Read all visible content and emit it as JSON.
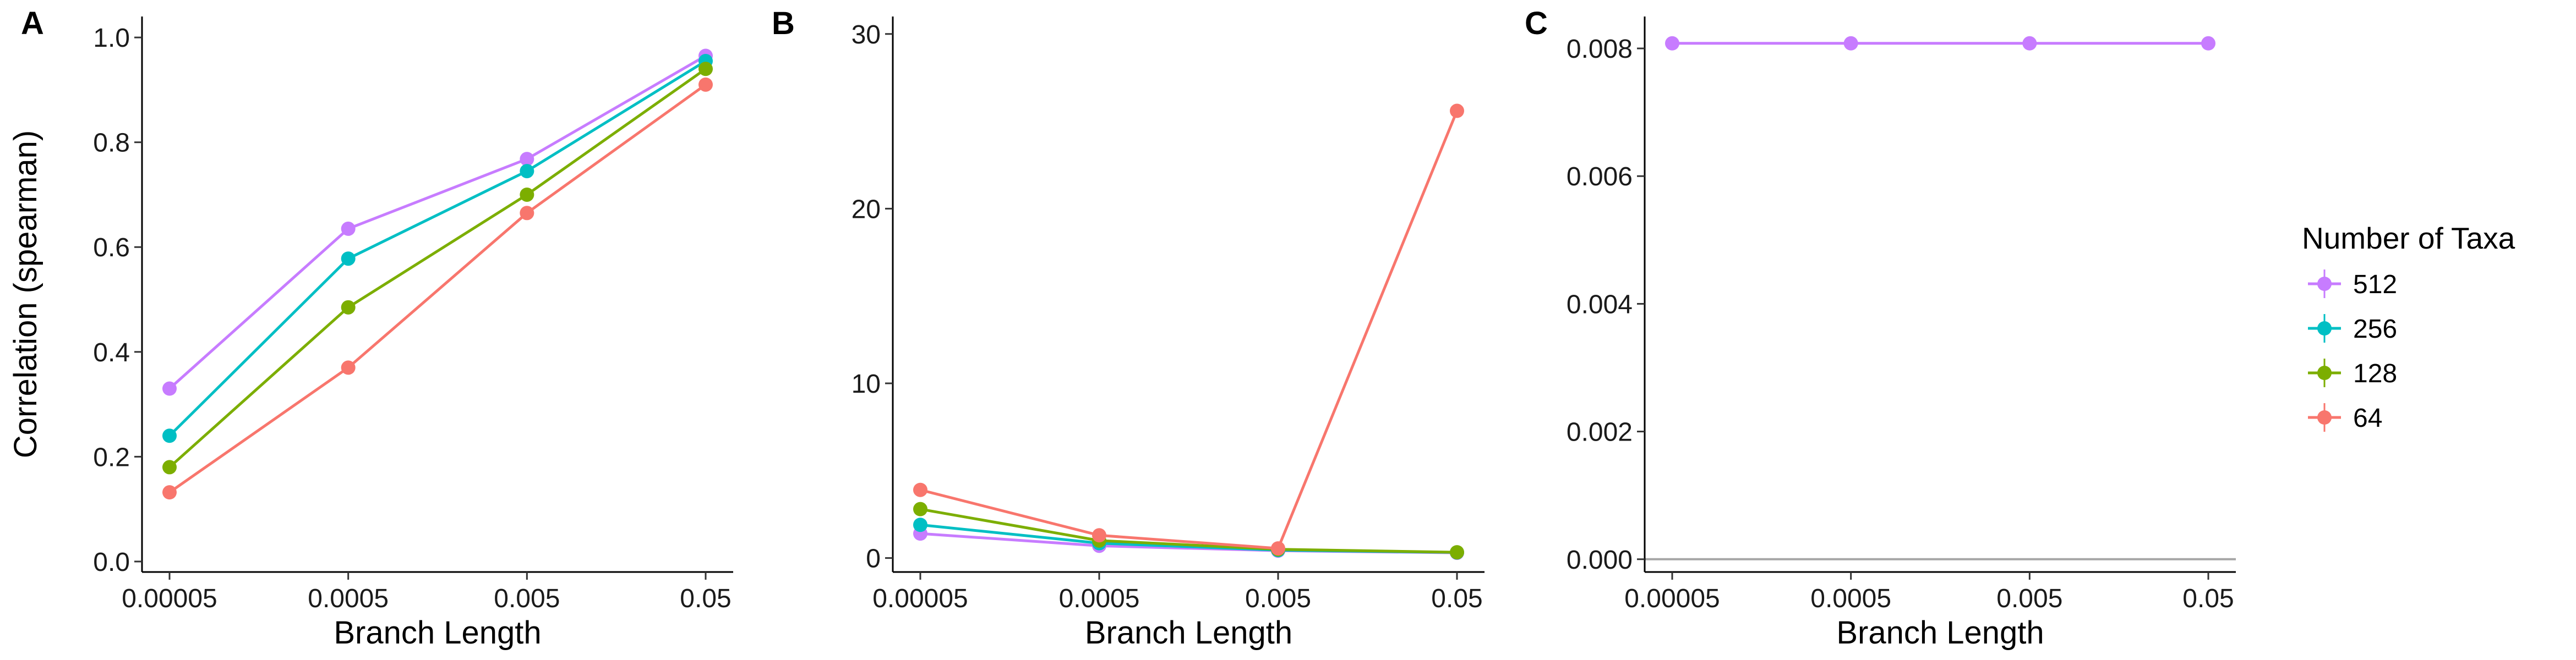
{
  "legend": {
    "title": "Number of Taxa",
    "entries": [
      {
        "label": "512",
        "color": "#C77CFF"
      },
      {
        "label": "256",
        "color": "#00BFC4"
      },
      {
        "label": "128",
        "color": "#7CAE00"
      },
      {
        "label": "64",
        "color": "#F8766D"
      }
    ]
  },
  "chart_data": [
    {
      "panel": "A",
      "type": "line",
      "x": [
        "0.00005",
        "0.0005",
        "0.005",
        "0.05"
      ],
      "xlabel": "Branch Length",
      "ylabel": "Correlation (spearman)",
      "ylim": [
        -0.02,
        1.04
      ],
      "yticks": [
        0.0,
        0.2,
        0.4,
        0.6,
        0.8,
        1.0
      ],
      "ytick_labels": [
        "0.0",
        "0.2",
        "0.4",
        "0.6",
        "0.8",
        "1.0"
      ],
      "series": [
        {
          "name": "512",
          "color": "#C77CFF",
          "values": [
            0.33,
            0.635,
            0.768,
            0.965
          ]
        },
        {
          "name": "256",
          "color": "#00BFC4",
          "values": [
            0.24,
            0.578,
            0.745,
            0.955
          ]
        },
        {
          "name": "128",
          "color": "#7CAE00",
          "values": [
            0.18,
            0.485,
            0.7,
            0.94
          ]
        },
        {
          "name": "64",
          "color": "#F8766D",
          "values": [
            0.132,
            0.37,
            0.665,
            0.91
          ]
        }
      ]
    },
    {
      "panel": "B",
      "type": "line",
      "x": [
        "0.00005",
        "0.0005",
        "0.005",
        "0.05"
      ],
      "xlabel": "Branch Length",
      "ylabel": "",
      "ylim": [
        -0.8,
        31
      ],
      "yticks": [
        0,
        10,
        20,
        30
      ],
      "ytick_labels": [
        "0",
        "10",
        "20",
        "30"
      ],
      "series": [
        {
          "name": "512",
          "color": "#C77CFF",
          "values": [
            1.4,
            0.7,
            0.42,
            0.3
          ]
        },
        {
          "name": "256",
          "color": "#00BFC4",
          "values": [
            1.9,
            0.85,
            0.45,
            0.32
          ]
        },
        {
          "name": "128",
          "color": "#7CAE00",
          "values": [
            2.8,
            1.0,
            0.5,
            0.33
          ]
        },
        {
          "name": "64",
          "color": "#F8766D",
          "values": [
            3.9,
            1.3,
            0.55,
            25.6
          ]
        }
      ]
    },
    {
      "panel": "C",
      "type": "line",
      "x": [
        "0.00005",
        "0.0005",
        "0.005",
        "0.05"
      ],
      "xlabel": "Branch Length",
      "ylabel": "",
      "ylim": [
        -0.0002,
        0.0085
      ],
      "yticks": [
        0.0,
        0.002,
        0.004,
        0.006,
        0.008
      ],
      "ytick_labels": [
        "0.000",
        "0.002",
        "0.004",
        "0.006",
        "0.008"
      ],
      "hline": 0,
      "series": [
        {
          "name": "512",
          "color": "#C77CFF",
          "values": [
            0.00808,
            0.00808,
            0.00808,
            0.00808
          ]
        }
      ]
    }
  ]
}
